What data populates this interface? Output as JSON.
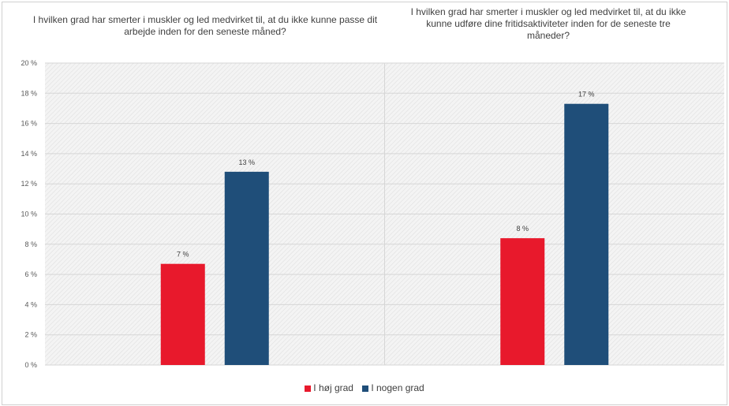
{
  "chart_data": {
    "type": "bar",
    "categories": [
      "I hvilken grad har smerter i muskler og led medvirket til, at du ikke kunne passe dit arbejde inden for den seneste måned?",
      "I hvilken grad har smerter i muskler og led medvirket til, at du ikke kunne udføre dine fritidsaktiviteter inden for de seneste tre måneder?"
    ],
    "series": [
      {
        "name": "I høj grad",
        "values": [
          6.7,
          8.4
        ],
        "labels": [
          "7 %",
          "8 %"
        ],
        "color": "#e8192c"
      },
      {
        "name": "I nogen grad",
        "values": [
          12.8,
          17.3
        ],
        "labels": [
          "13 %",
          "17 %"
        ],
        "color": "#1f4e79"
      }
    ],
    "ylim": [
      0,
      20
    ],
    "yticks": [
      "0 %",
      "2 %",
      "4 %",
      "6 %",
      "8 %",
      "10 %",
      "12 %",
      "14 %",
      "16 %",
      "18 %",
      "20 %"
    ],
    "grid": true,
    "legend": "bottom"
  }
}
